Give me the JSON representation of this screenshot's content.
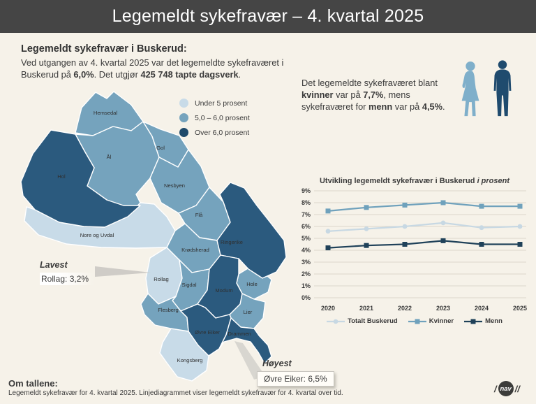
{
  "header": {
    "title": "Legemeldt sykefravær – 4. kvartal 2025"
  },
  "intro": {
    "heading": "Legemeldt sykefravær i Buskerud:",
    "part1": "Ved utgangen av 4. kvartal 2025 var det legemeldte sykefraværet i Buskerud på ",
    "rate": "6,0%",
    "part2": ". Det utgjør ",
    "dagsverk": "425 748 tapte dagsverk",
    "part3": "."
  },
  "gender": {
    "part1": "Det legemeldte sykefraværet blant ",
    "kvinner_label": "kvinner",
    "part2": " var på ",
    "kvinner_rate": "7,7%",
    "part3": ", mens sykefraværet for ",
    "menn_label": "menn",
    "part4": " var på ",
    "menn_rate": "4,5%",
    "part5": "."
  },
  "map": {
    "legend": [
      {
        "label": "Under 5 prosent",
        "color": "#c8dbe8"
      },
      {
        "label": "5,0 – 6,0 prosent",
        "color": "#75a3bd"
      },
      {
        "label": "Over 6,0 prosent",
        "color": "#1f4a6b"
      }
    ],
    "regions": {
      "hol": {
        "label": "Hol",
        "band": "dark"
      },
      "hemsedal": {
        "label": "Hemsedal",
        "band": "mid"
      },
      "al": {
        "label": "Ål",
        "band": "mid"
      },
      "gol": {
        "label": "Gol",
        "band": "mid"
      },
      "nesbyen": {
        "label": "Nesbyen",
        "band": "mid"
      },
      "fla": {
        "label": "Flå",
        "band": "mid"
      },
      "nore": {
        "label": "Nore og Uvdal",
        "band": "light"
      },
      "rollag": {
        "label": "Rollag",
        "band": "light"
      },
      "krodsherad": {
        "label": "Krødsherad",
        "band": "mid"
      },
      "sigdal": {
        "label": "Sigdal",
        "band": "mid"
      },
      "ringerike": {
        "label": "Ringerike",
        "band": "dark"
      },
      "hole": {
        "label": "Hole",
        "band": "mid"
      },
      "modum": {
        "label": "Modum",
        "band": "dark"
      },
      "flesberg": {
        "label": "Flesberg",
        "band": "mid"
      },
      "lier": {
        "label": "Lier",
        "band": "mid"
      },
      "ovre_eiker": {
        "label": "Øvre Eiker",
        "band": "dark"
      },
      "drammen": {
        "label": "Drammen",
        "band": "dark"
      },
      "kongsberg": {
        "label": "Kongsberg",
        "band": "light"
      }
    },
    "lavest": {
      "title": "Lavest",
      "value": "Rollag: 3,2%"
    },
    "hoyest": {
      "title": "Høyest",
      "value": "Øvre Eiker: 6,5%"
    }
  },
  "chart_data": {
    "type": "line",
    "title": "Utvikling legemeldt sykefravær i Buskerud",
    "title_suffix": "i prosent",
    "x": [
      "2020",
      "2021",
      "2022",
      "2023",
      "2024",
      "2025"
    ],
    "series": [
      {
        "name": "Totalt Buskerud",
        "values": [
          5.6,
          5.8,
          6.0,
          6.3,
          5.9,
          6.0
        ],
        "color": "#c7d8e3",
        "marker": "circle"
      },
      {
        "name": "Kvinner",
        "values": [
          7.3,
          7.6,
          7.8,
          8.0,
          7.7,
          7.7
        ],
        "color": "#6fa1bc",
        "marker": "square"
      },
      {
        "name": "Menn",
        "values": [
          4.2,
          4.4,
          4.5,
          4.8,
          4.5,
          4.5
        ],
        "color": "#1f4159",
        "marker": "square"
      }
    ],
    "ylim": [
      0,
      9
    ],
    "ytick_suffix": "%",
    "grid": true,
    "legend_position": "bottom"
  },
  "footer": {
    "heading": "Om tallene:",
    "text": "Legemeldt sykefravær for 4. kvartal 2025. Linjediagrammet viser legemeldt sykefravær for 4. kvartal over tid."
  },
  "logo": {
    "slash_left": "/",
    "text": "nav",
    "slash_right": "//"
  },
  "colors": {
    "header_bg": "#454545",
    "page_bg": "#f6f2e9",
    "band_light": "#c8dbe8",
    "band_mid": "#75a3bd",
    "band_dark": "#2b5a7e",
    "figure_woman": "#7fafca",
    "figure_man": "#1f4b6e"
  }
}
